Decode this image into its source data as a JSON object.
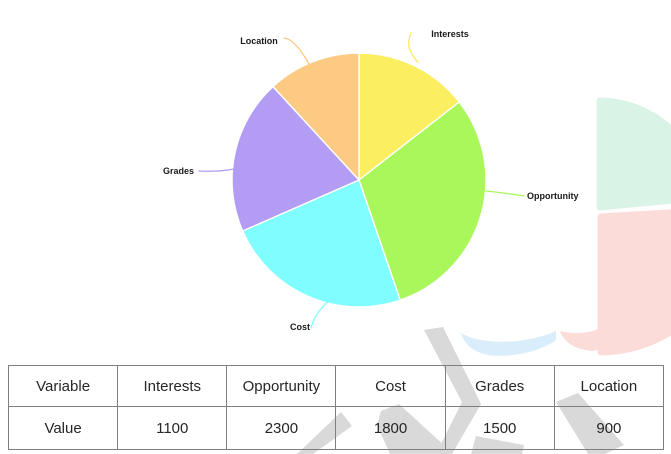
{
  "chart_data": {
    "type": "pie",
    "categories": [
      "Interests",
      "Opportunity",
      "Cost",
      "Grades",
      "Location"
    ],
    "values": [
      1100,
      2300,
      1800,
      1500,
      900
    ],
    "total": 7600,
    "colors": [
      "#fcee61",
      "#aaf75c",
      "#80feff",
      "#b39df4",
      "#fcca82"
    ],
    "start_angle_deg": 0,
    "direction": "clockwise",
    "labels_outside": true,
    "label_color": "#1a1a1a",
    "slice_gap_color": "#ffffff",
    "legend": "none",
    "title": ""
  },
  "table": {
    "header_row": [
      "Variable",
      "Interests",
      "Opportunity",
      "Cost",
      "Grades",
      "Location"
    ],
    "value_row": [
      "Value",
      "1100",
      "2300",
      "1800",
      "1500",
      "900"
    ]
  },
  "decor": {
    "fragment_mint": "#d9f4e7",
    "fragment_pink": "#fbdcd8",
    "fragment_blue": "#d9edfb",
    "watermark_gray": "#d9d9d9"
  }
}
